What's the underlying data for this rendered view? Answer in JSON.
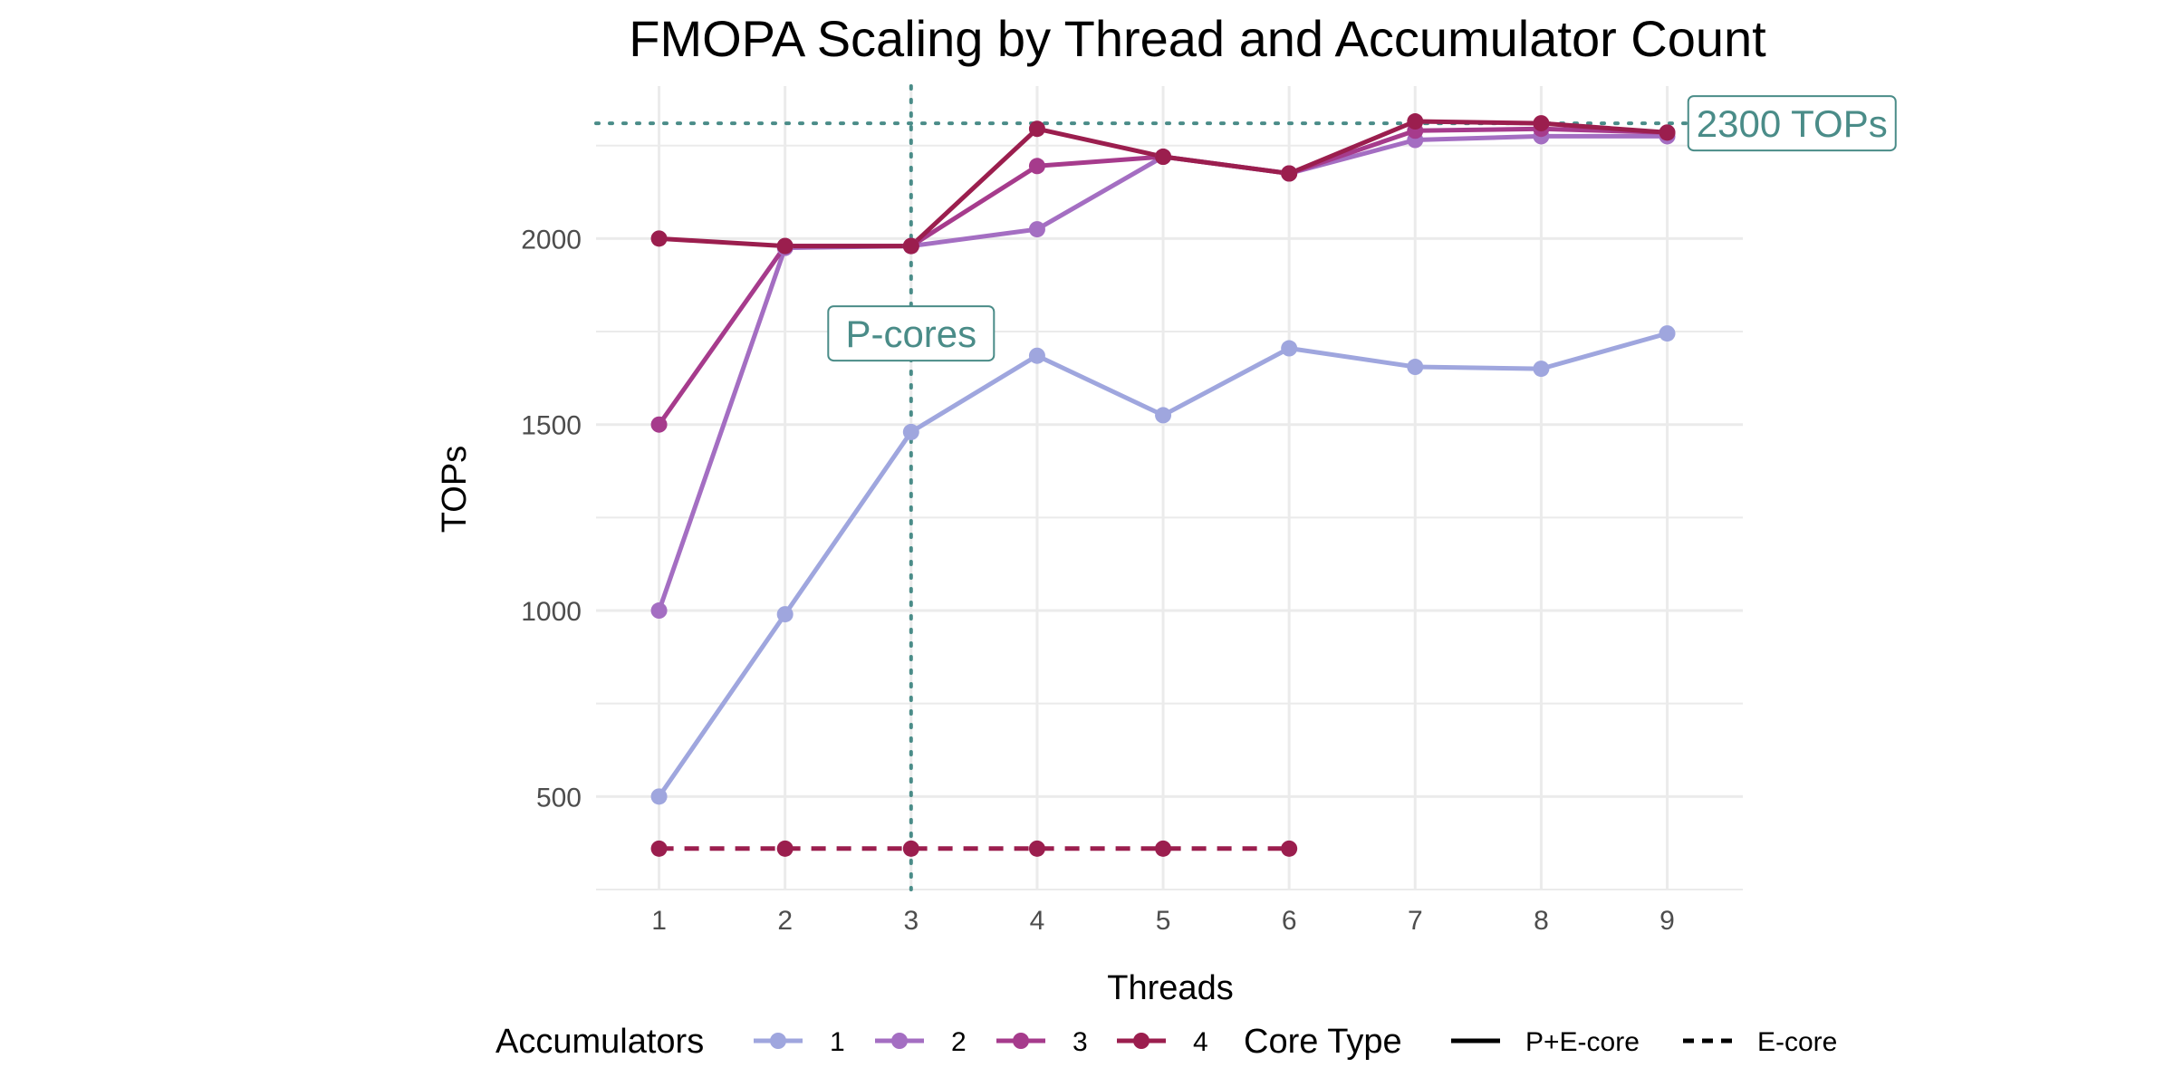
{
  "chart_data": {
    "type": "line",
    "title": "FMOPA Scaling by Thread and Accumulator Count",
    "xlabel": "Threads",
    "ylabel": "TOPs",
    "x": [
      1,
      2,
      3,
      4,
      5,
      6,
      7,
      8,
      9
    ],
    "xlim": [
      0.5,
      9.6
    ],
    "ylim": [
      250,
      2410
    ],
    "yticks": [
      500,
      1000,
      1500,
      2000
    ],
    "grid": true,
    "legend_position": "bottom",
    "series": [
      {
        "accumulators": "1",
        "core_type": "P+E-core",
        "color": "#9fa6de",
        "dashed": false,
        "x": [
          1,
          2,
          3,
          4,
          5,
          6,
          7,
          8,
          9
        ],
        "values": [
          500,
          990,
          1480,
          1685,
          1525,
          1705,
          1655,
          1650,
          1745
        ]
      },
      {
        "accumulators": "2",
        "core_type": "P+E-core",
        "color": "#a46ec2",
        "dashed": false,
        "x": [
          1,
          2,
          3,
          4,
          5,
          6,
          7,
          8,
          9
        ],
        "values": [
          1000,
          1975,
          1980,
          2025,
          2220,
          2175,
          2265,
          2275,
          2275
        ]
      },
      {
        "accumulators": "3",
        "core_type": "P+E-core",
        "color": "#a63b8c",
        "dashed": false,
        "x": [
          1,
          2,
          3,
          4,
          5,
          6,
          7,
          8,
          9
        ],
        "values": [
          1500,
          1980,
          1980,
          2195,
          2220,
          2175,
          2290,
          2295,
          2285
        ]
      },
      {
        "accumulators": "4",
        "core_type": "P+E-core",
        "color": "#9b1e4e",
        "dashed": false,
        "x": [
          1,
          2,
          3,
          4,
          5,
          6,
          7,
          8,
          9
        ],
        "values": [
          2000,
          1980,
          1980,
          2295,
          2220,
          2175,
          2315,
          2310,
          2285
        ]
      },
      {
        "accumulators": "4",
        "core_type": "E-core",
        "color": "#9b1e4e",
        "dashed": true,
        "x": [
          1,
          2,
          3,
          4,
          5,
          6
        ],
        "values": [
          360,
          360,
          360,
          360,
          360,
          360
        ]
      }
    ],
    "reference_lines": [
      {
        "orientation": "horizontal",
        "value": 2310,
        "color": "#4a8c88",
        "label": "2300 TOPs",
        "label_x": 9.99
      },
      {
        "orientation": "vertical",
        "value": 3,
        "color": "#4a8c88",
        "label": "P-cores",
        "label_y": 1745
      }
    ],
    "legend": {
      "accumulators_title": "Accumulators",
      "accumulators": [
        {
          "label": "1",
          "color": "#9fa6de"
        },
        {
          "label": "2",
          "color": "#a46ec2"
        },
        {
          "label": "3",
          "color": "#a63b8c"
        },
        {
          "label": "4",
          "color": "#9b1e4e"
        }
      ],
      "core_type_title": "Core Type",
      "core_types": [
        {
          "label": "P+E-core",
          "dashed": false
        },
        {
          "label": "E-core",
          "dashed": true
        }
      ]
    }
  }
}
